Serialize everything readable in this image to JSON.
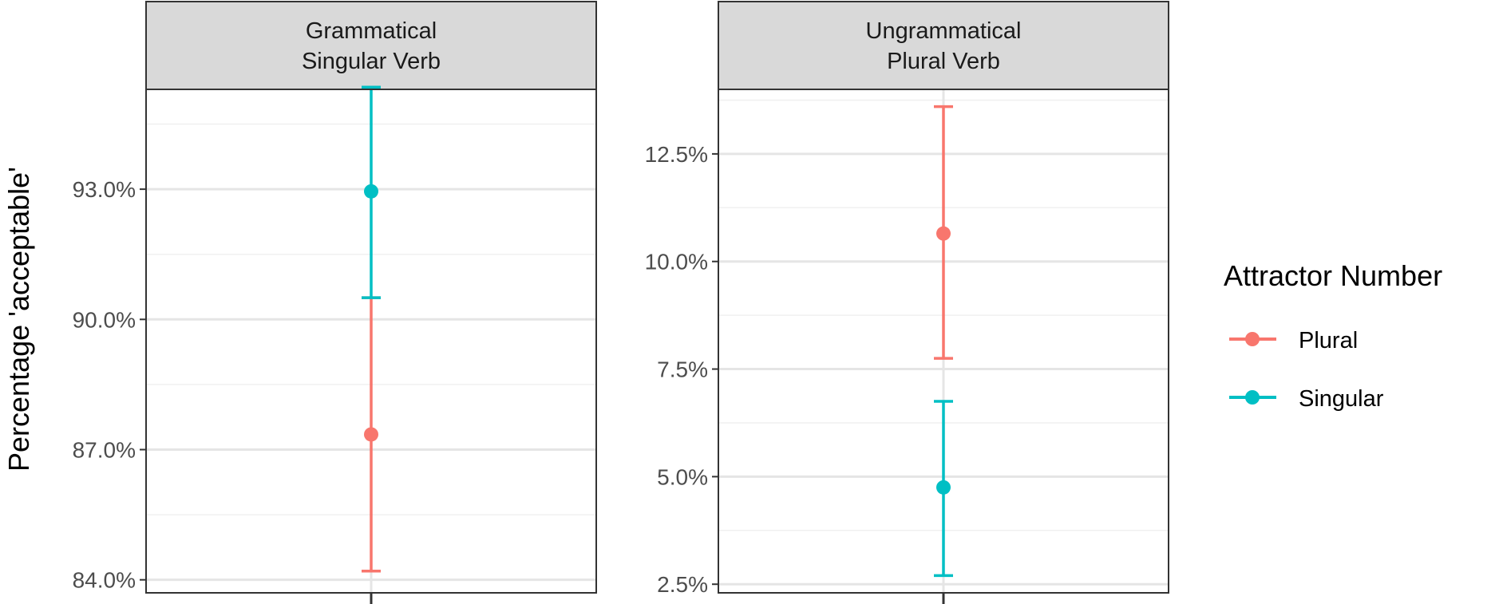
{
  "colors": {
    "Plural": "#F8766D",
    "Singular": "#00BFC4",
    "grid_major": "#e5e5e5",
    "grid_minor": "#f0f0f0",
    "strip_fill": "#d9d9d9",
    "border": "#333333"
  },
  "chart_data": {
    "type": "scatter",
    "geom": "point-range",
    "ylabel": "Percentage 'acceptable'",
    "legend": {
      "title": "Attractor Number",
      "placement": "right",
      "entries": [
        "Plural",
        "Singular"
      ]
    },
    "grid": true,
    "panels": [
      {
        "strip": [
          "Grammatical",
          "Singular Verb"
        ],
        "ylim": [
          83.7,
          95.3
        ],
        "yticks": [
          84,
          87,
          90,
          93
        ],
        "ytick_labels": [
          "84.0%",
          "87.0%",
          "90.0%",
          "93.0%"
        ],
        "series": [
          {
            "name": "Plural",
            "value": 87.35,
            "lower": 84.2,
            "upper": 90.5
          },
          {
            "name": "Singular",
            "value": 92.95,
            "lower": 90.5,
            "upper": 95.35
          }
        ]
      },
      {
        "strip": [
          "Ungrammatical",
          "Plural Verb"
        ],
        "ylim": [
          2.3,
          14.0
        ],
        "yticks": [
          2.5,
          5.0,
          7.5,
          10.0,
          12.5
        ],
        "ytick_labels": [
          "2.5%",
          "5.0%",
          "7.5%",
          "10.0%",
          "12.5%"
        ],
        "series": [
          {
            "name": "Plural",
            "value": 10.65,
            "lower": 7.75,
            "upper": 13.6
          },
          {
            "name": "Singular",
            "value": 4.75,
            "lower": 2.7,
            "upper": 6.75
          }
        ]
      }
    ]
  }
}
